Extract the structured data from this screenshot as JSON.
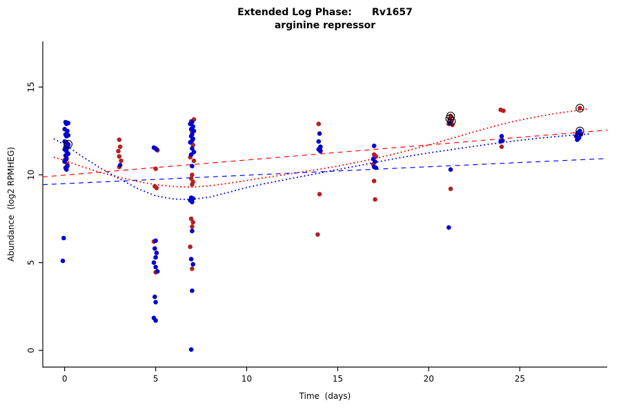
{
  "chart_data": {
    "type": "scatter",
    "title": "Extended Log Phase:      Rv1657",
    "subtitle": "arginine repressor",
    "xlabel": "Time  (days)",
    "ylabel": "Abundance  (log2 RPMHEG)",
    "xlim": [
      -1.2,
      29.8
    ],
    "ylim": [
      -0.95,
      17.6
    ],
    "xticks": [
      0,
      5,
      10,
      15,
      20,
      25
    ],
    "yticks": [
      0,
      5,
      10,
      15
    ],
    "grid": false,
    "legend": "none",
    "series": [
      {
        "id": "points-red",
        "name": "red replicate points",
        "type": "points",
        "color": "#b22222",
        "points": [
          [
            0.2,
            11.75
          ],
          [
            0.1,
            11.0
          ],
          [
            0.0,
            10.85
          ],
          [
            0.15,
            10.6
          ],
          [
            3.0,
            12.0
          ],
          [
            3.05,
            11.6
          ],
          [
            2.95,
            11.35
          ],
          [
            3.0,
            11.05
          ],
          [
            3.1,
            10.8
          ],
          [
            3.0,
            10.45
          ],
          [
            5.1,
            11.4
          ],
          [
            5.0,
            10.35
          ],
          [
            4.95,
            9.35
          ],
          [
            5.05,
            9.25
          ],
          [
            4.9,
            6.2
          ],
          [
            5.0,
            4.45
          ],
          [
            7.1,
            13.15
          ],
          [
            6.95,
            13.05
          ],
          [
            7.0,
            12.45
          ],
          [
            7.05,
            11.7
          ],
          [
            6.9,
            11.0
          ],
          [
            7.1,
            10.8
          ],
          [
            7.0,
            10.0
          ],
          [
            6.95,
            9.8
          ],
          [
            7.05,
            9.6
          ],
          [
            7.0,
            9.45
          ],
          [
            6.95,
            7.5
          ],
          [
            7.05,
            7.3
          ],
          [
            7.0,
            7.05
          ],
          [
            6.9,
            5.9
          ],
          [
            7.0,
            4.65
          ],
          [
            13.95,
            12.9
          ],
          [
            14.05,
            11.4
          ],
          [
            14.0,
            8.9
          ],
          [
            13.9,
            6.6
          ],
          [
            17.0,
            11.15
          ],
          [
            17.1,
            11.05
          ],
          [
            16.95,
            10.6
          ],
          [
            17.0,
            9.65
          ],
          [
            17.05,
            8.6
          ],
          [
            21.2,
            13.35
          ],
          [
            21.15,
            13.2
          ],
          [
            21.25,
            13.05
          ],
          [
            21.1,
            12.9
          ],
          [
            21.3,
            12.85
          ],
          [
            21.2,
            9.2
          ],
          [
            23.95,
            13.7
          ],
          [
            24.1,
            13.65
          ],
          [
            24.0,
            11.6
          ],
          [
            28.3,
            13.8
          ],
          [
            28.15,
            12.35
          ]
        ]
      },
      {
        "id": "points-blue",
        "name": "blue replicate points",
        "type": "points",
        "color": "#0000cd",
        "points": [
          [
            0.05,
            13.0
          ],
          [
            0.2,
            12.95
          ],
          [
            0.1,
            12.9
          ],
          [
            0.0,
            12.6
          ],
          [
            0.15,
            12.5
          ],
          [
            0.05,
            12.3
          ],
          [
            0.2,
            12.25
          ],
          [
            0.1,
            12.2
          ],
          [
            0.0,
            11.9
          ],
          [
            0.1,
            11.85
          ],
          [
            0.2,
            11.7
          ],
          [
            0.05,
            11.6
          ],
          [
            0.15,
            11.55
          ],
          [
            0.0,
            11.45
          ],
          [
            0.1,
            11.35
          ],
          [
            0.2,
            11.2
          ],
          [
            0.05,
            11.1
          ],
          [
            0.1,
            10.9
          ],
          [
            0.0,
            10.75
          ],
          [
            0.15,
            10.5
          ],
          [
            0.05,
            10.4
          ],
          [
            0.1,
            10.3
          ],
          [
            -0.05,
            6.4
          ],
          [
            -0.1,
            5.1
          ],
          [
            3.05,
            10.55
          ],
          [
            4.9,
            11.55
          ],
          [
            5.0,
            11.5
          ],
          [
            5.05,
            11.45
          ],
          [
            5.0,
            6.25
          ],
          [
            4.95,
            5.8
          ],
          [
            5.05,
            5.55
          ],
          [
            5.0,
            5.3
          ],
          [
            4.9,
            5.0
          ],
          [
            5.0,
            4.75
          ],
          [
            5.1,
            4.5
          ],
          [
            4.95,
            3.05
          ],
          [
            5.0,
            2.75
          ],
          [
            4.9,
            1.85
          ],
          [
            5.0,
            1.7
          ],
          [
            7.0,
            13.0
          ],
          [
            6.9,
            12.9
          ],
          [
            7.05,
            12.75
          ],
          [
            6.95,
            12.6
          ],
          [
            7.1,
            12.5
          ],
          [
            7.0,
            12.3
          ],
          [
            6.95,
            12.2
          ],
          [
            7.05,
            12.05
          ],
          [
            7.0,
            11.95
          ],
          [
            6.9,
            11.85
          ],
          [
            7.0,
            11.5
          ],
          [
            7.1,
            11.3
          ],
          [
            6.95,
            11.15
          ],
          [
            7.0,
            10.5
          ],
          [
            6.95,
            8.7
          ],
          [
            7.05,
            8.65
          ],
          [
            6.9,
            8.55
          ],
          [
            7.0,
            8.45
          ],
          [
            7.0,
            6.8
          ],
          [
            6.95,
            5.2
          ],
          [
            7.05,
            4.9
          ],
          [
            7.0,
            3.4
          ],
          [
            6.95,
            0.05
          ],
          [
            14.0,
            12.35
          ],
          [
            13.95,
            11.9
          ],
          [
            14.05,
            11.6
          ],
          [
            14.0,
            11.5
          ],
          [
            13.95,
            11.45
          ],
          [
            14.05,
            11.35
          ],
          [
            17.0,
            11.65
          ],
          [
            16.95,
            10.9
          ],
          [
            17.05,
            10.75
          ],
          [
            17.0,
            10.45
          ],
          [
            17.1,
            10.4
          ],
          [
            21.15,
            12.95
          ],
          [
            21.2,
            10.3
          ],
          [
            21.1,
            7.0
          ],
          [
            24.0,
            12.2
          ],
          [
            24.05,
            11.95
          ],
          [
            23.95,
            11.9
          ],
          [
            28.3,
            12.5
          ],
          [
            28.2,
            12.4
          ],
          [
            28.35,
            12.3
          ],
          [
            28.1,
            12.2
          ],
          [
            28.25,
            12.1
          ],
          [
            28.15,
            12.0
          ]
        ]
      },
      {
        "id": "loess-red",
        "name": "red smoothed (loess) fit",
        "type": "line",
        "dash": "dotted",
        "color": "#ff0000",
        "points": [
          [
            -0.6,
            11.0
          ],
          [
            0,
            10.82
          ],
          [
            1,
            10.45
          ],
          [
            2,
            10.12
          ],
          [
            3,
            9.86
          ],
          [
            4,
            9.62
          ],
          [
            5,
            9.44
          ],
          [
            6,
            9.33
          ],
          [
            7,
            9.3
          ],
          [
            8,
            9.38
          ],
          [
            9,
            9.52
          ],
          [
            10,
            9.68
          ],
          [
            11,
            9.84
          ],
          [
            12,
            10.0
          ],
          [
            13,
            10.16
          ],
          [
            14,
            10.32
          ],
          [
            15,
            10.5
          ],
          [
            16,
            10.7
          ],
          [
            17,
            10.92
          ],
          [
            18,
            11.16
          ],
          [
            19,
            11.42
          ],
          [
            20,
            11.7
          ],
          [
            21,
            12.0
          ],
          [
            22,
            12.3
          ],
          [
            23,
            12.6
          ],
          [
            24,
            12.88
          ],
          [
            25,
            13.12
          ],
          [
            26,
            13.32
          ],
          [
            27,
            13.5
          ],
          [
            28,
            13.65
          ],
          [
            28.8,
            13.76
          ]
        ]
      },
      {
        "id": "loess-blue",
        "name": "blue smoothed (loess) fit",
        "type": "line",
        "dash": "dotted",
        "color": "#0000ff",
        "points": [
          [
            -0.6,
            12.05
          ],
          [
            0,
            11.72
          ],
          [
            1,
            11.02
          ],
          [
            2,
            10.36
          ],
          [
            3,
            9.78
          ],
          [
            4,
            9.22
          ],
          [
            5,
            8.8
          ],
          [
            6,
            8.62
          ],
          [
            7,
            8.6
          ],
          [
            8,
            8.74
          ],
          [
            9,
            9.0
          ],
          [
            10,
            9.28
          ],
          [
            11,
            9.5
          ],
          [
            12,
            9.7
          ],
          [
            13,
            9.9
          ],
          [
            14,
            10.1
          ],
          [
            15,
            10.3
          ],
          [
            16,
            10.5
          ],
          [
            17,
            10.7
          ],
          [
            18,
            10.9
          ],
          [
            19,
            11.08
          ],
          [
            20,
            11.25
          ],
          [
            21,
            11.4
          ],
          [
            22,
            11.55
          ],
          [
            23,
            11.7
          ],
          [
            24,
            11.84
          ],
          [
            25,
            11.97
          ],
          [
            26,
            12.08
          ],
          [
            27,
            12.18
          ],
          [
            28,
            12.27
          ],
          [
            28.8,
            12.33
          ]
        ]
      },
      {
        "id": "linear-red",
        "name": "red linear fit",
        "type": "line",
        "dash": "dashed",
        "color": "#ff0000",
        "points": [
          [
            -1.2,
            9.88
          ],
          [
            29.8,
            12.55
          ]
        ]
      },
      {
        "id": "linear-blue",
        "name": "blue linear fit",
        "type": "line",
        "dash": "dashed",
        "color": "#0000ff",
        "points": [
          [
            -1.2,
            9.44
          ],
          [
            29.8,
            10.93
          ]
        ]
      }
    ],
    "highlighted": {
      "name": "circled outlier points",
      "color": "#000000",
      "points": [
        [
          0.2,
          11.75
        ],
        [
          21.2,
          13.35
        ],
        [
          21.15,
          13.2
        ],
        [
          21.25,
          13.05
        ],
        [
          28.3,
          13.8
        ],
        [
          28.3,
          12.5
        ]
      ]
    }
  }
}
